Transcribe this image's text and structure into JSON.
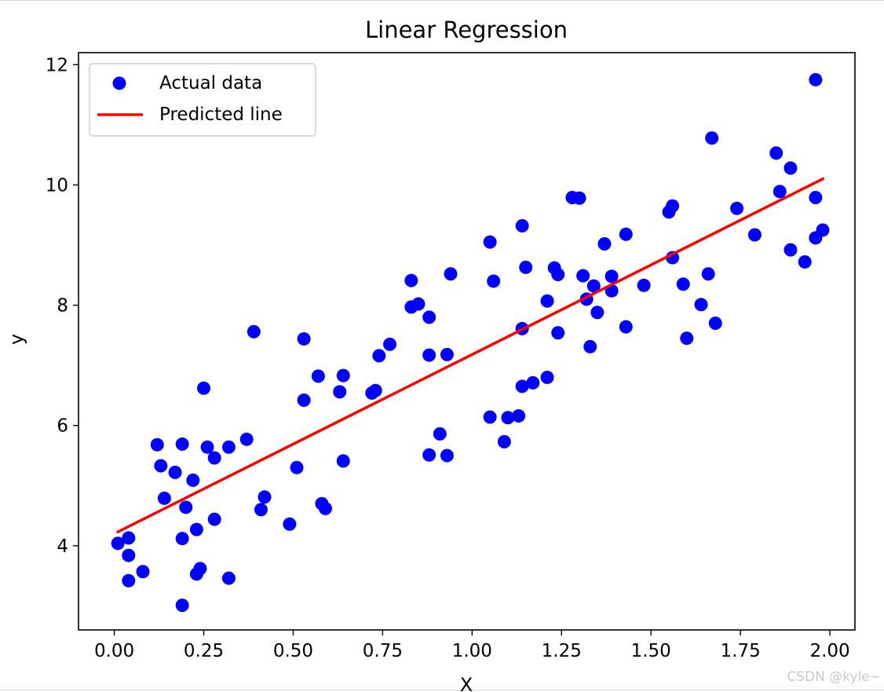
{
  "chart_data": {
    "type": "scatter",
    "title": "Linear Regression",
    "xlabel": "X",
    "ylabel": "y",
    "xlim": [
      -0.1,
      2.07
    ],
    "ylim": [
      2.6,
      12.2
    ],
    "xticks": [
      "0.00",
      "0.25",
      "0.50",
      "0.75",
      "1.00",
      "1.25",
      "1.50",
      "1.75",
      "2.00"
    ],
    "yticks": [
      "4",
      "6",
      "8",
      "10",
      "12"
    ],
    "grid": false,
    "legend_position": "top-left",
    "series": [
      {
        "name": "Actual data",
        "kind": "scatter",
        "color": "#0000ff",
        "points": [
          [
            0.01,
            4.04
          ],
          [
            0.04,
            4.13
          ],
          [
            0.04,
            3.84
          ],
          [
            0.04,
            3.42
          ],
          [
            0.08,
            3.57
          ],
          [
            0.12,
            5.68
          ],
          [
            0.13,
            5.33
          ],
          [
            0.14,
            4.79
          ],
          [
            0.17,
            5.22
          ],
          [
            0.19,
            5.69
          ],
          [
            0.19,
            4.12
          ],
          [
            0.19,
            3.01
          ],
          [
            0.2,
            4.64
          ],
          [
            0.22,
            5.09
          ],
          [
            0.23,
            4.27
          ],
          [
            0.24,
            3.62
          ],
          [
            0.23,
            3.53
          ],
          [
            0.25,
            6.62
          ],
          [
            0.26,
            5.64
          ],
          [
            0.28,
            5.46
          ],
          [
            0.28,
            4.44
          ],
          [
            0.32,
            3.46
          ],
          [
            0.32,
            5.64
          ],
          [
            0.37,
            5.77
          ],
          [
            0.39,
            7.56
          ],
          [
            0.42,
            4.81
          ],
          [
            0.41,
            4.6
          ],
          [
            0.49,
            4.36
          ],
          [
            0.51,
            5.3
          ],
          [
            0.53,
            7.44
          ],
          [
            0.53,
            6.42
          ],
          [
            0.57,
            6.82
          ],
          [
            0.58,
            4.7
          ],
          [
            0.59,
            4.62
          ],
          [
            0.63,
            6.56
          ],
          [
            0.64,
            6.83
          ],
          [
            0.64,
            5.41
          ],
          [
            0.72,
            6.54
          ],
          [
            0.73,
            6.58
          ],
          [
            0.74,
            7.16
          ],
          [
            0.77,
            7.35
          ],
          [
            0.83,
            8.41
          ],
          [
            0.83,
            7.97
          ],
          [
            0.85,
            8.02
          ],
          [
            0.88,
            7.8
          ],
          [
            0.88,
            7.17
          ],
          [
            0.88,
            5.51
          ],
          [
            0.91,
            5.86
          ],
          [
            0.93,
            5.5
          ],
          [
            0.93,
            7.18
          ],
          [
            0.94,
            8.52
          ],
          [
            1.05,
            9.05
          ],
          [
            1.05,
            6.14
          ],
          [
            1.06,
            8.4
          ],
          [
            1.09,
            5.73
          ],
          [
            1.1,
            6.13
          ],
          [
            1.14,
            9.32
          ],
          [
            1.13,
            6.16
          ],
          [
            1.14,
            7.61
          ],
          [
            1.14,
            6.65
          ],
          [
            1.15,
            8.63
          ],
          [
            1.17,
            6.71
          ],
          [
            1.21,
            8.07
          ],
          [
            1.21,
            6.8
          ],
          [
            1.23,
            8.62
          ],
          [
            1.24,
            8.51
          ],
          [
            1.24,
            7.54
          ],
          [
            1.28,
            9.79
          ],
          [
            1.3,
            9.78
          ],
          [
            1.31,
            8.49
          ],
          [
            1.32,
            8.1
          ],
          [
            1.33,
            7.31
          ],
          [
            1.34,
            8.32
          ],
          [
            1.35,
            7.88
          ],
          [
            1.37,
            9.02
          ],
          [
            1.39,
            8.48
          ],
          [
            1.39,
            8.24
          ],
          [
            1.43,
            9.18
          ],
          [
            1.43,
            7.64
          ],
          [
            1.48,
            8.33
          ],
          [
            1.55,
            9.55
          ],
          [
            1.56,
            9.65
          ],
          [
            1.56,
            8.79
          ],
          [
            1.59,
            8.35
          ],
          [
            1.6,
            7.45
          ],
          [
            1.64,
            8.01
          ],
          [
            1.66,
            8.52
          ],
          [
            1.67,
            10.78
          ],
          [
            1.68,
            7.7
          ],
          [
            1.74,
            9.61
          ],
          [
            1.79,
            9.17
          ],
          [
            1.85,
            10.53
          ],
          [
            1.86,
            9.89
          ],
          [
            1.89,
            10.28
          ],
          [
            1.89,
            8.92
          ],
          [
            1.93,
            8.72
          ],
          [
            1.96,
            9.12
          ],
          [
            1.96,
            9.79
          ],
          [
            1.96,
            11.75
          ],
          [
            1.98,
            9.25
          ]
        ]
      },
      {
        "name": "Predicted line",
        "kind": "line",
        "color": "#ff0000",
        "points": [
          [
            0.01,
            4.23
          ],
          [
            1.98,
            10.1
          ]
        ]
      }
    ]
  },
  "watermark": "CSDN @kyle~"
}
